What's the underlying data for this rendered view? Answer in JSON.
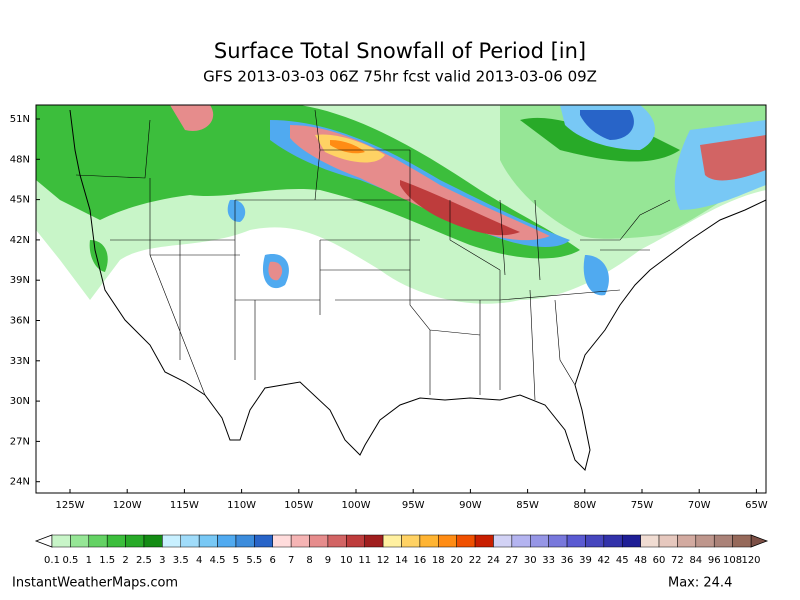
{
  "header": {
    "title": "Surface Total Snowfall of Period [in]",
    "subtitle": "GFS 2013-03-03 06Z 75hr fcst valid 2013-03-06 09Z"
  },
  "map": {
    "lat_labels": [
      "51N",
      "48N",
      "45N",
      "42N",
      "39N",
      "36N",
      "33N",
      "30N",
      "27N",
      "24N"
    ],
    "lon_labels": [
      "125W",
      "120W",
      "115W",
      "110W",
      "105W",
      "100W",
      "95W",
      "90W",
      "85W",
      "80W",
      "75W",
      "70W",
      "65W"
    ]
  },
  "legend": {
    "labels": [
      "0.1",
      "0.5",
      "1",
      "1.5",
      "2",
      "2.5",
      "3",
      "3.5",
      "4",
      "4.5",
      "5",
      "5.5",
      "6",
      "7",
      "8",
      "9",
      "10",
      "11",
      "12",
      "14",
      "16",
      "18",
      "20",
      "22",
      "24",
      "27",
      "30",
      "33",
      "36",
      "39",
      "42",
      "45",
      "48",
      "60",
      "72",
      "84",
      "96",
      "108",
      "120"
    ],
    "colors": [
      "#c8f5c8",
      "#96e696",
      "#64d264",
      "#3cbe3c",
      "#28aa28",
      "#148c14",
      "#c8f0ff",
      "#a0dcfa",
      "#78c8f5",
      "#50aaf0",
      "#3c8cdc",
      "#2864c8",
      "#ffdcdc",
      "#f5b4b4",
      "#e68c8c",
      "#d26464",
      "#be3c3c",
      "#a01e1e",
      "#fff0a0",
      "#ffd264",
      "#ffb432",
      "#ff8c14",
      "#f05000",
      "#c81e00",
      "#d2d2f5",
      "#b4b4f0",
      "#9696e6",
      "#7878dc",
      "#5a5ad2",
      "#4646be",
      "#3232aa",
      "#1e1e96",
      "#f0dcd2",
      "#e6c8be",
      "#d2aaa0",
      "#be968c",
      "#aa8278",
      "#96695a"
    ]
  },
  "footer": {
    "source": "InstantWeatherMaps.com",
    "max": "Max:  24.4"
  }
}
